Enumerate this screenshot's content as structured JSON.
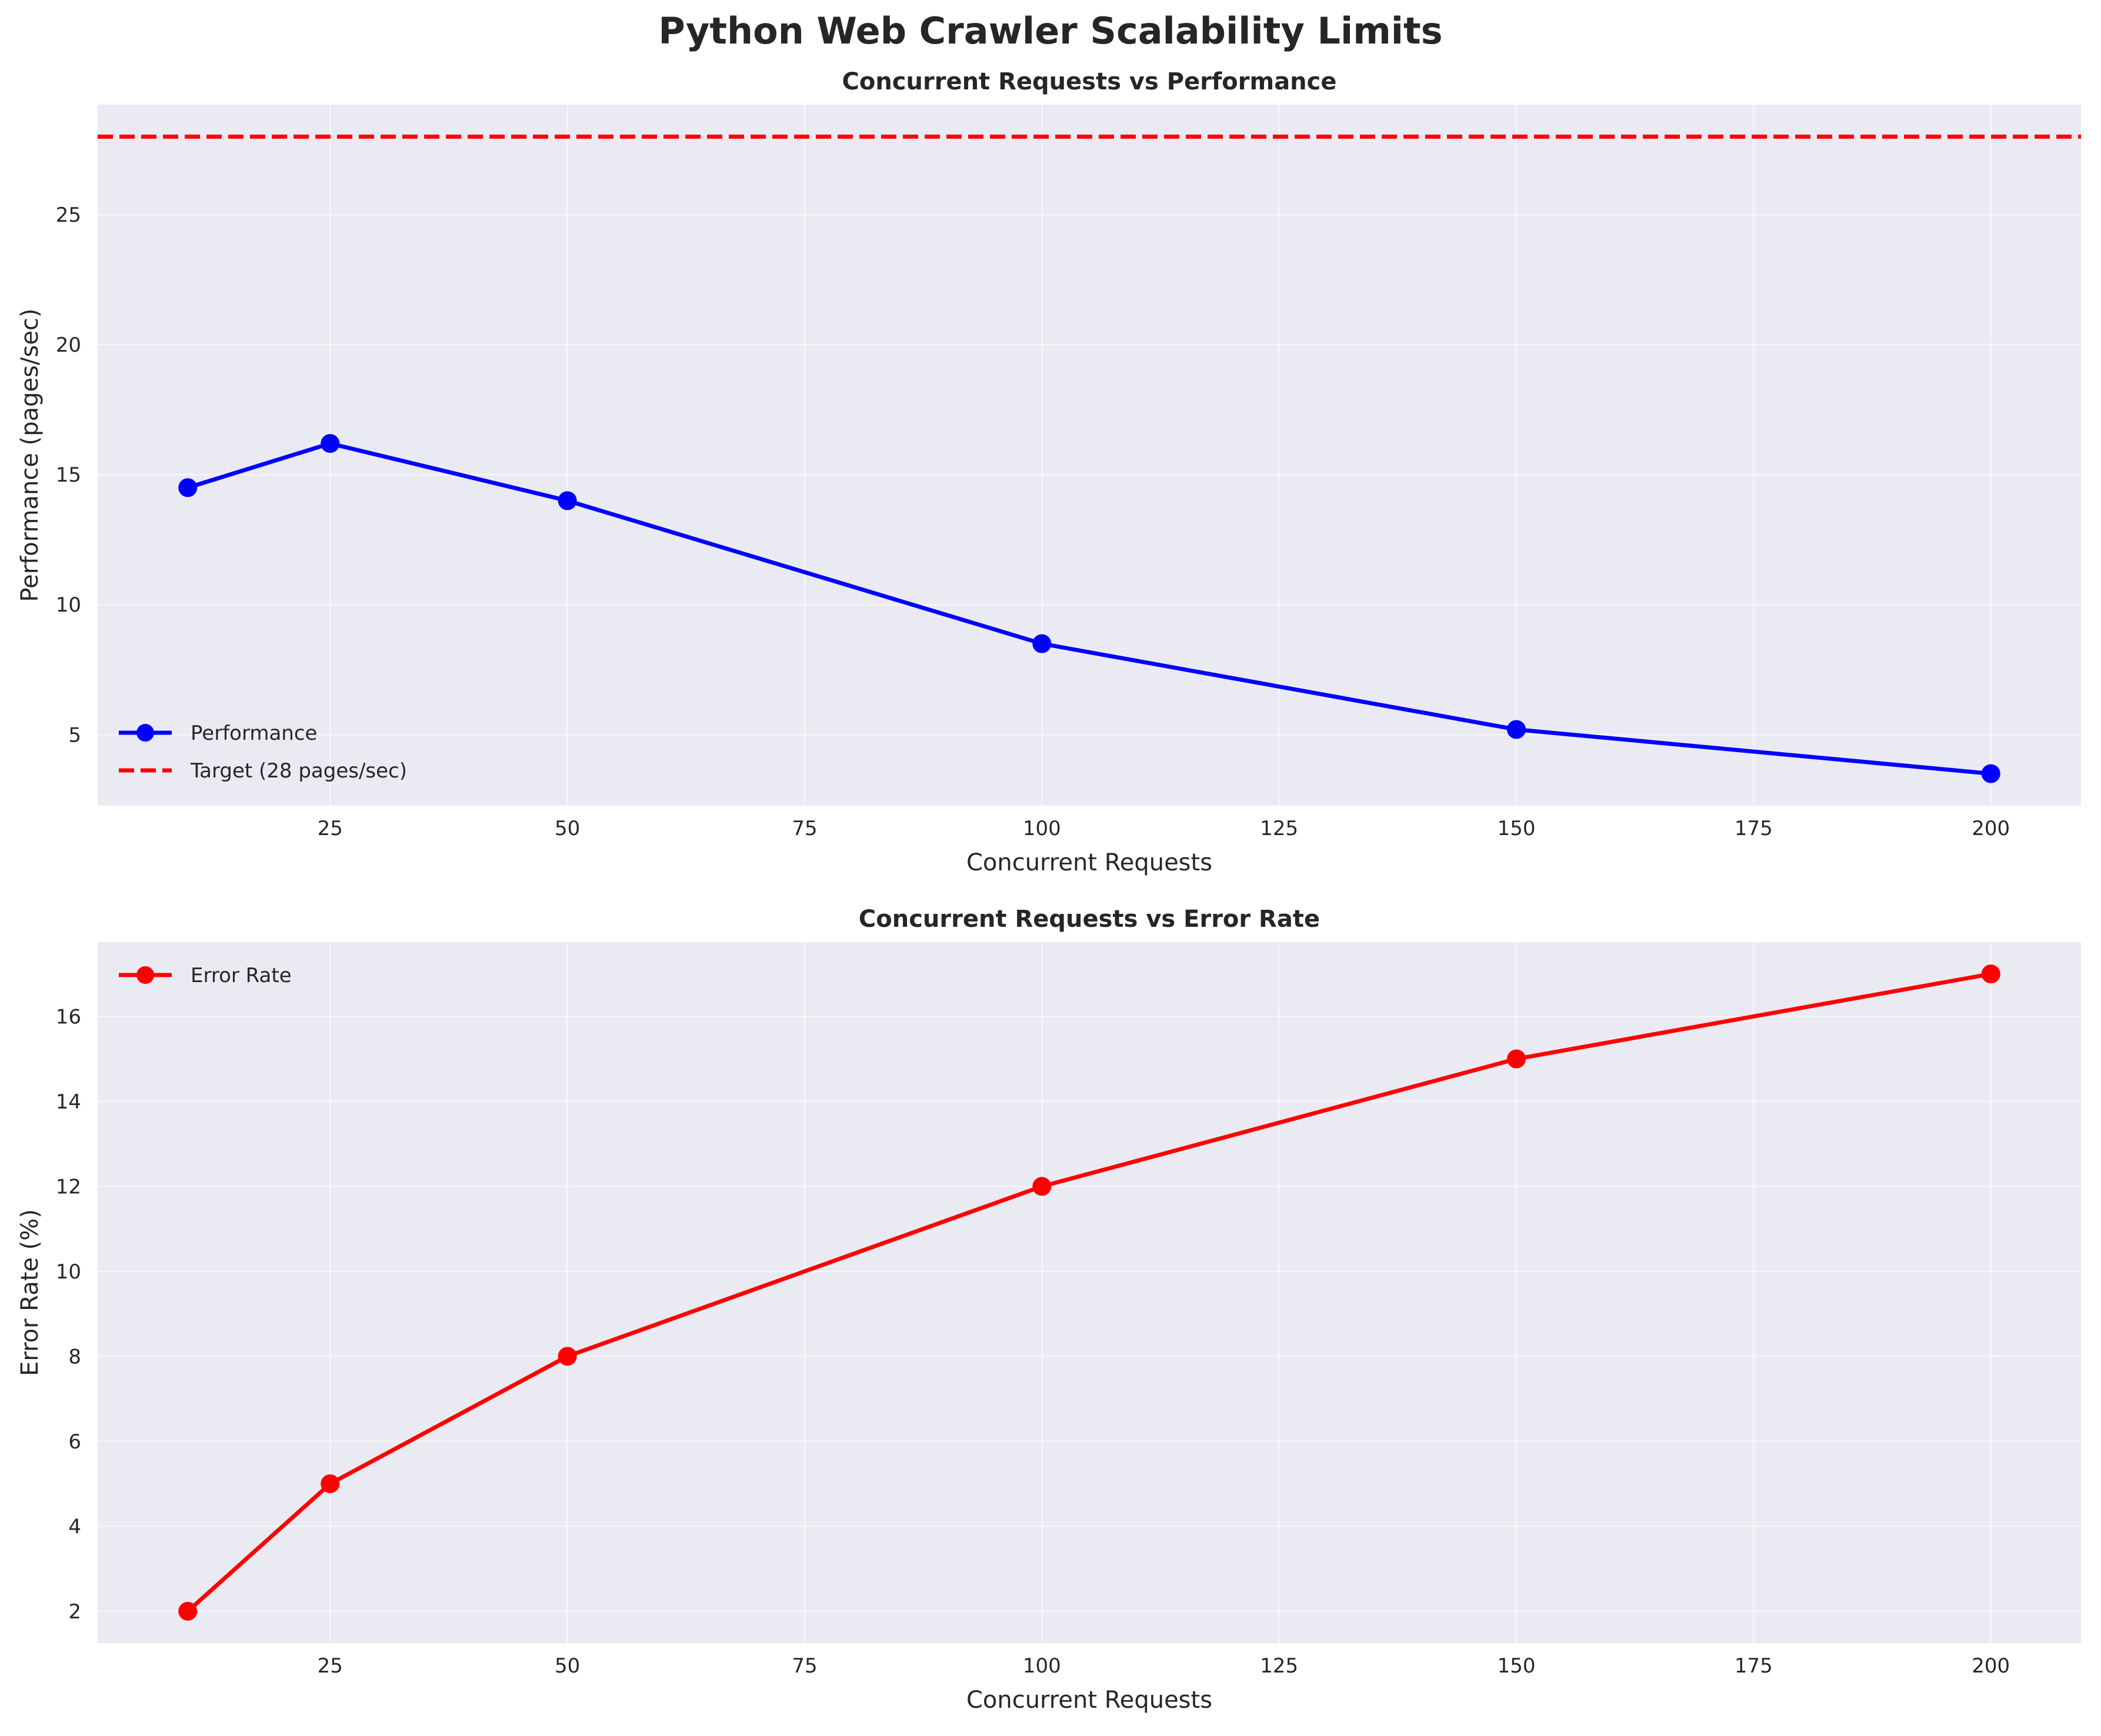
{
  "figure": {
    "suptitle": "Python Web Crawler Scalability Limits"
  },
  "chart_data": [
    {
      "type": "line",
      "title": "Concurrent Requests vs Performance",
      "xlabel": "Concurrent Requests",
      "ylabel": "Performance (pages/sec)",
      "x": [
        10,
        25,
        50,
        100,
        150,
        200
      ],
      "series": [
        {
          "name": "Performance",
          "values": [
            14.5,
            16.2,
            14.0,
            8.5,
            5.2,
            3.5
          ],
          "color": "#0000ff",
          "marker": "circle"
        }
      ],
      "reference_lines": [
        {
          "name": "Target (28 pages/sec)",
          "y": 28,
          "color": "#ff0000",
          "style": "dashed"
        }
      ],
      "xlim": [
        0.5,
        209.5
      ],
      "ylim": [
        2.27,
        29.23
      ],
      "xticks": [
        25,
        50,
        75,
        100,
        125,
        150,
        175,
        200
      ],
      "yticks": [
        5,
        10,
        15,
        20,
        25
      ],
      "grid": true,
      "legend": "lower-left"
    },
    {
      "type": "line",
      "title": "Concurrent Requests vs Error Rate",
      "xlabel": "Concurrent Requests",
      "ylabel": "Error Rate (%)",
      "x": [
        10,
        25,
        50,
        100,
        150,
        200
      ],
      "series": [
        {
          "name": "Error Rate",
          "values": [
            2,
            5,
            8,
            12,
            15,
            17
          ],
          "color": "#ff0000",
          "marker": "circle"
        }
      ],
      "xlim": [
        0.5,
        209.5
      ],
      "ylim": [
        1.25,
        17.75
      ],
      "xticks": [
        25,
        50,
        75,
        100,
        125,
        150,
        175,
        200
      ],
      "yticks": [
        2,
        4,
        6,
        8,
        10,
        12,
        14,
        16
      ],
      "grid": true,
      "legend": "upper-left"
    }
  ],
  "style": {
    "plot_background": "#eaeaf2",
    "grid_color": "#ffffff",
    "text_color": "#262626"
  }
}
